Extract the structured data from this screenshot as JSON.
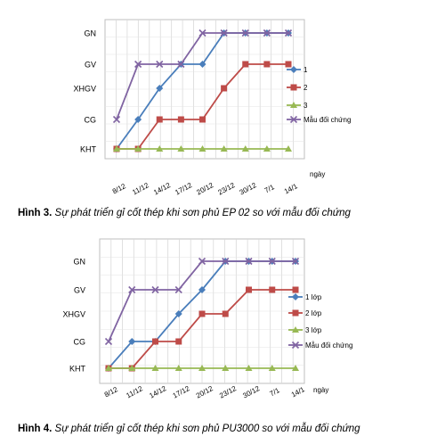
{
  "figures": [
    {
      "caption_prefix": "Hình 3.",
      "caption_text": " Sự phát triển gỉ cốt thép khi sơn phủ EP 02 so với mẫu đối chứng"
    },
    {
      "caption_prefix": "Hình 4.",
      "caption_text": " Sự phát triển gỉ cốt thép khi sơn phủ PU3000 so với mẫu đối chứng"
    }
  ],
  "chart_data": [
    {
      "type": "line",
      "title": "",
      "xlabel": "ngày",
      "ylabel": "",
      "categories": [
        "8/12",
        "11/12",
        "14/12",
        "17/12",
        "20/12",
        "23/12",
        "30/12",
        "7/1",
        "14/1"
      ],
      "y_levels": [
        "KHT",
        "CG",
        "XHGV",
        "GV",
        "GN"
      ],
      "grid": true,
      "legend_position": "right",
      "series": [
        {
          "name": "1",
          "color": "#4a7ebb",
          "marker": "diamond",
          "values": [
            0,
            1,
            2,
            3,
            3,
            4,
            4,
            4,
            4
          ]
        },
        {
          "name": "2",
          "color": "#be4b48",
          "marker": "square",
          "values": [
            0,
            0,
            1,
            1,
            1,
            2,
            3,
            3,
            3
          ]
        },
        {
          "name": "3",
          "color": "#98b954",
          "marker": "triangle",
          "values": [
            0,
            0,
            0,
            0,
            0,
            0,
            0,
            0,
            0
          ]
        },
        {
          "name": "Mẫu đối chứng",
          "color": "#8064a2",
          "marker": "x",
          "values": [
            1,
            3,
            3,
            3,
            4,
            4,
            4,
            4,
            4
          ]
        }
      ]
    },
    {
      "type": "line",
      "title": "",
      "xlabel": "ngày",
      "ylabel": "",
      "categories": [
        "8/12",
        "11/12",
        "14/12",
        "17/12",
        "20/12",
        "23/12",
        "30/12",
        "7/1",
        "14/1"
      ],
      "y_levels": [
        "KHT",
        "CG",
        "XHGV",
        "GV",
        "GN"
      ],
      "grid": true,
      "legend_position": "right",
      "series": [
        {
          "name": "1 lớp",
          "color": "#4a7ebb",
          "marker": "diamond",
          "values": [
            0,
            1,
            1,
            2,
            3,
            4,
            4,
            4,
            4
          ]
        },
        {
          "name": "2 lớp",
          "color": "#be4b48",
          "marker": "square",
          "values": [
            0,
            0,
            1,
            1,
            2,
            2,
            3,
            3,
            3
          ]
        },
        {
          "name": "3 lớp",
          "color": "#98b954",
          "marker": "triangle",
          "values": [
            0,
            0,
            0,
            0,
            0,
            0,
            0,
            0,
            0
          ]
        },
        {
          "name": "Mẫu đối chứng",
          "color": "#8064a2",
          "marker": "x",
          "values": [
            1,
            3,
            3,
            3,
            4,
            4,
            4,
            4,
            4
          ]
        }
      ]
    }
  ]
}
